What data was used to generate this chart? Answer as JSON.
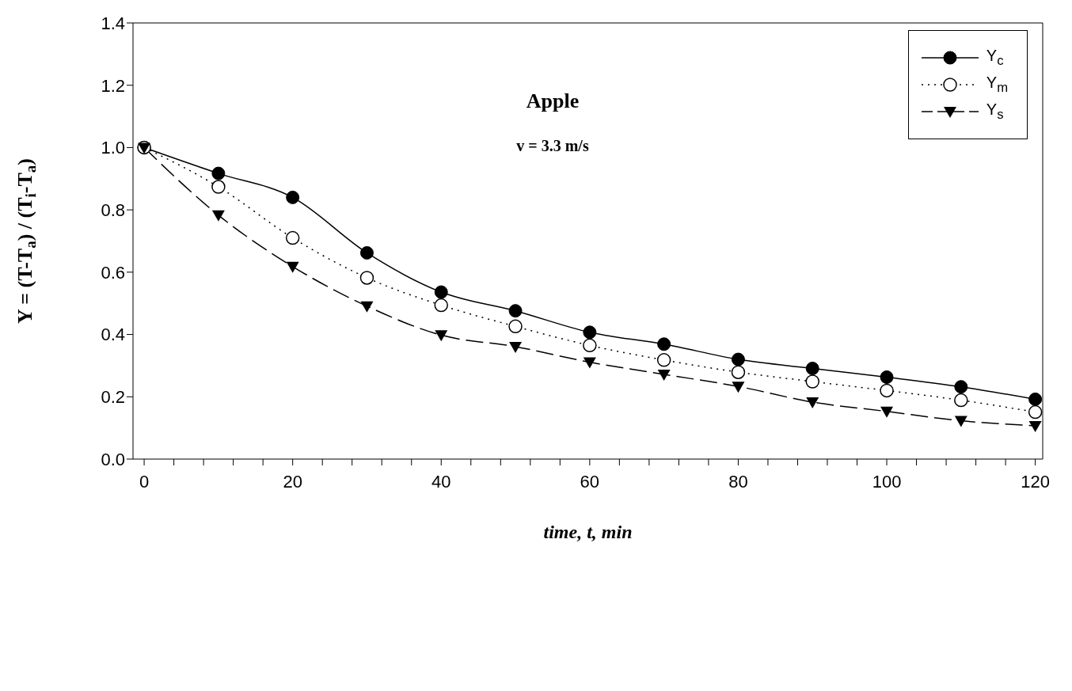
{
  "chart_data": {
    "type": "line",
    "xlabel": "time, t, min",
    "ylabel": "Y = (T-T$_{a}$) / (T$_{i}$-T$_{a}$)",
    "annotations": [
      "Apple",
      "v = 3.3 m/s"
    ],
    "x": [
      0,
      10,
      20,
      30,
      40,
      50,
      60,
      70,
      80,
      90,
      100,
      110,
      120
    ],
    "series": [
      {
        "name": "Y$_{c}$",
        "color": "#000000",
        "marker": "circle",
        "line_style": "solid",
        "values": [
          1.0,
          0.917,
          0.84,
          0.662,
          0.536,
          0.476,
          0.407,
          0.369,
          0.32,
          0.291,
          0.263,
          0.232,
          0.192
        ]
      },
      {
        "name": "Y$_{m}$",
        "color": "#000000",
        "marker": "circle-open",
        "line_style": "dotted",
        "values": [
          1.0,
          0.874,
          0.71,
          0.582,
          0.494,
          0.426,
          0.365,
          0.318,
          0.279,
          0.249,
          0.22,
          0.189,
          0.151
        ]
      },
      {
        "name": "Y$_{s}$",
        "color": "#000000",
        "marker": "triangle",
        "line_style": "dashed",
        "values": [
          1.0,
          0.783,
          0.618,
          0.491,
          0.398,
          0.361,
          0.311,
          0.272,
          0.233,
          0.183,
          0.153,
          0.123,
          0.107
        ]
      }
    ],
    "xlim": [
      -1.5,
      121
    ],
    "xticks": [
      0,
      {
        "value": 4,
        "label": null
      },
      {
        "value": 8,
        "label": null
      },
      {
        "value": 12,
        "label": null
      },
      {
        "value": 16,
        "label": null
      },
      20,
      {
        "value": 24,
        "label": null
      },
      {
        "value": 28,
        "label": null
      },
      {
        "value": 32,
        "label": null
      },
      {
        "value": 36,
        "label": null
      },
      40,
      {
        "value": 44,
        "label": null
      },
      {
        "value": 48,
        "label": null
      },
      {
        "value": 52,
        "label": null
      },
      {
        "value": 56,
        "label": null
      },
      60,
      {
        "value": 64,
        "label": null
      },
      {
        "value": 68,
        "label": null
      },
      {
        "value": 72,
        "label": null
      },
      {
        "value": 76,
        "label": null
      },
      80,
      {
        "value": 84,
        "label": null
      },
      {
        "value": 88,
        "label": null
      },
      {
        "value": 92,
        "label": null
      },
      {
        "value": 96,
        "label": null
      },
      100,
      {
        "value": 104,
        "label": null
      },
      {
        "value": 108,
        "label": null
      },
      {
        "value": 112,
        "label": null
      },
      {
        "value": 116,
        "label": null
      },
      120
    ],
    "ylim": [
      0,
      1.4
    ],
    "yticks": [
      {
        "value": 0,
        "label": "0.0"
      },
      0.2,
      0.4,
      0.6,
      0.8,
      {
        "value": 1,
        "label": "1.0"
      },
      1.2,
      1.4
    ],
    "grid": false,
    "legend": "top right"
  }
}
